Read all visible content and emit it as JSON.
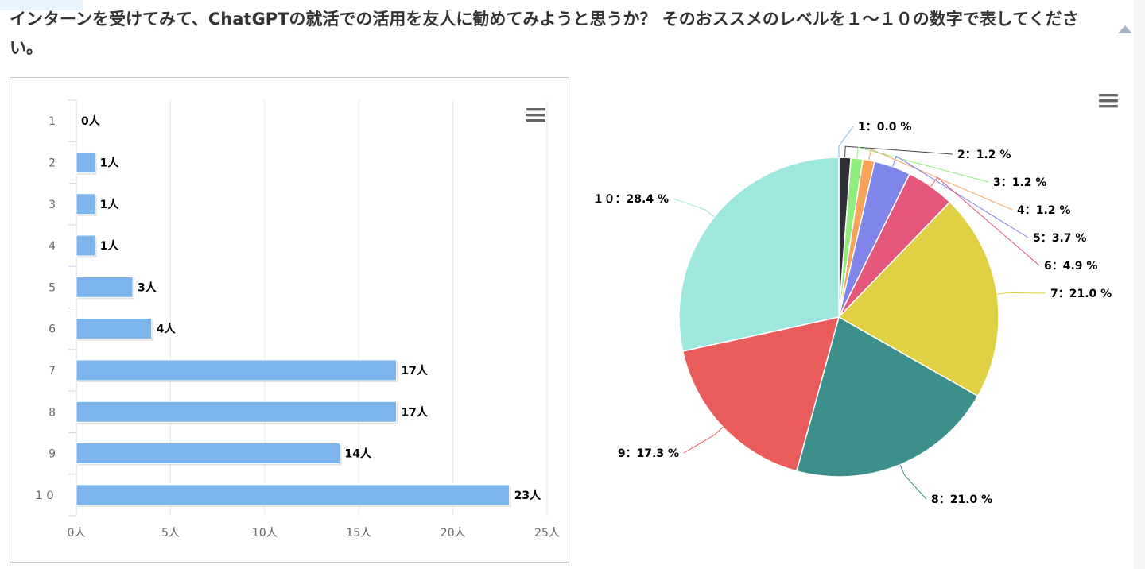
{
  "question": "インターンを受けてみて、ChatGPTの就活での活用を友人に勧めてみようと思うか？ そのおススメのレベルを１～１０の数字で表してください。",
  "colors": {
    "bar": "#7cb5ec",
    "grid": "#e6e6e6",
    "axis": "#ccd6eb",
    "label": "#666666",
    "menu": "#666666"
  },
  "chart_data": [
    {
      "type": "bar",
      "orientation": "horizontal",
      "categories": [
        "1",
        "2",
        "3",
        "4",
        "5",
        "6",
        "7",
        "8",
        "9",
        "１０"
      ],
      "values": [
        0,
        1,
        1,
        1,
        3,
        4,
        17,
        17,
        14,
        23
      ],
      "value_labels": [
        "0人",
        "1人",
        "1人",
        "1人",
        "3人",
        "4人",
        "17人",
        "17人",
        "14人",
        "23人"
      ],
      "xlim": [
        0,
        25
      ],
      "x_ticks": [
        0,
        5,
        10,
        15,
        20,
        25
      ],
      "x_tick_labels": [
        "0人",
        "5人",
        "10人",
        "15人",
        "20人",
        "25人"
      ],
      "grid": true,
      "title": "",
      "xlabel": "",
      "ylabel": ""
    },
    {
      "type": "pie",
      "slices": [
        {
          "label": "1：0.0 %",
          "value": 0.0,
          "color": "#434348"
        },
        {
          "label": "2：1.2 %",
          "value": 1.2,
          "color": "#2f3136"
        },
        {
          "label": "3：1.2 %",
          "value": 1.2,
          "color": "#90ed7d"
        },
        {
          "label": "4：1.2 %",
          "value": 1.2,
          "color": "#f7a35c"
        },
        {
          "label": "5：3.7 %",
          "value": 3.7,
          "color": "#8085e9"
        },
        {
          "label": "6：4.9 %",
          "value": 4.9,
          "color": "#e4577a"
        },
        {
          "label": "7：21.0 %",
          "value": 21.0,
          "color": "#e0d144"
        },
        {
          "label": "8：21.0 %",
          "value": 21.0,
          "color": "#3d8f8c"
        },
        {
          "label": "9：17.3 %",
          "value": 17.3,
          "color": "#ea5b5b"
        },
        {
          "label": "１０：28.4 %",
          "value": 28.4,
          "color": "#9de7df"
        }
      ],
      "connector_colors": [
        "#7cb5ec",
        "#434348",
        "#90ed7d",
        "#f7a35c",
        "#8085e9",
        "#e4577a",
        "#e0d144",
        "#3d8f8c",
        "#ea5b5b",
        "#9de7df"
      ],
      "title": ""
    }
  ],
  "menu_icon": "hamburger-menu-icon",
  "collapse_icon": "chevron-up-icon"
}
